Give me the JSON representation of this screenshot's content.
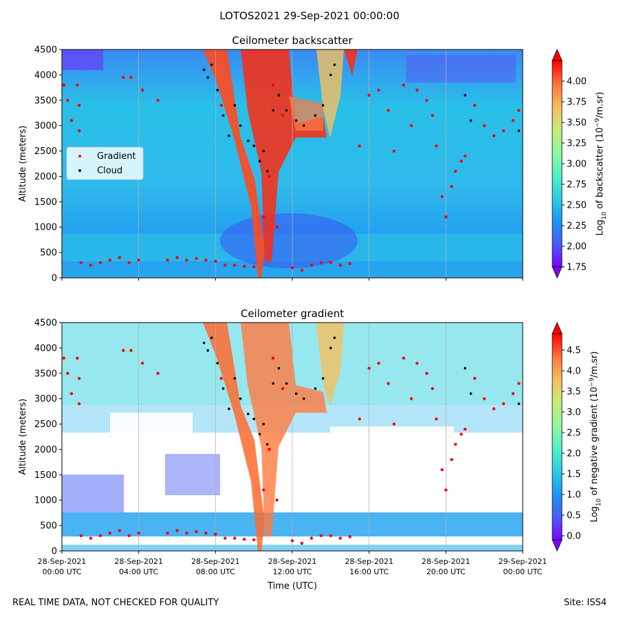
{
  "suptitle": "LOTOS2021 29-Sep-2021 00:00:00",
  "footer_left": "REAL TIME DATA, NOT CHECKED FOR QUALITY",
  "footer_right": "Site: ISS4",
  "xlabel": "Time (UTC)",
  "time_ticks": [
    {
      "hour": 0,
      "line1": "28-Sep-2021",
      "line2": "00:00 UTC"
    },
    {
      "hour": 4,
      "line1": "28-Sep-2021",
      "line2": "04:00 UTC"
    },
    {
      "hour": 8,
      "line1": "28-Sep-2021",
      "line2": "08:00 UTC"
    },
    {
      "hour": 12,
      "line1": "28-Sep-2021",
      "line2": "12:00 UTC"
    },
    {
      "hour": 16,
      "line1": "28-Sep-2021",
      "line2": "16:00 UTC"
    },
    {
      "hour": 20,
      "line1": "28-Sep-2021",
      "line2": "20:00 UTC"
    },
    {
      "hour": 24,
      "line1": "29-Sep-2021",
      "line2": "00:00 UTC"
    }
  ],
  "colors": {
    "gradient_marker": "#ff0000",
    "cloud_marker": "#000000",
    "legend_bg": "#d6f4fb",
    "colormap": [
      "#7f00ff",
      "#4a5cf8",
      "#1996f3",
      "#2acde4",
      "#4df2c8",
      "#8ef8a0",
      "#c5ec7c",
      "#f5c15f",
      "#ff7a3e",
      "#ff0000"
    ]
  },
  "chart_data": [
    {
      "type": "heatmap",
      "title": "Ceilometer backscatter",
      "ylabel": "Altitude (meters)",
      "xlim": [
        0,
        24
      ],
      "ylim": [
        0,
        4500
      ],
      "yticks": [
        0,
        500,
        1000,
        1500,
        2000,
        2500,
        3000,
        3500,
        4000,
        4500
      ],
      "colorbar": {
        "label_main": "Log",
        "label_sub": "10",
        "label_rest": " of backscatter (10",
        "label_exp": "−9",
        "label_end": "/m.sr)",
        "range": [
          1.75,
          4.25
        ],
        "ticks": [
          "1.75",
          "2.00",
          "2.25",
          "2.50",
          "2.75",
          "3.00",
          "3.25",
          "3.50",
          "3.75",
          "4.00"
        ]
      },
      "legend": [
        {
          "name": "Gradient",
          "color": "#ff0000"
        },
        {
          "name": "Cloud",
          "color": "#000000"
        }
      ],
      "gradient_points": [
        [
          0.1,
          3800
        ],
        [
          0.3,
          3500
        ],
        [
          0.5,
          3100
        ],
        [
          0.8,
          3800
        ],
        [
          0.9,
          3400
        ],
        [
          0.9,
          2900
        ],
        [
          1.0,
          300
        ],
        [
          1.5,
          250
        ],
        [
          2.0,
          300
        ],
        [
          2.5,
          350
        ],
        [
          3.0,
          400
        ],
        [
          3.5,
          300
        ],
        [
          4.0,
          350
        ],
        [
          3.2,
          3950
        ],
        [
          3.6,
          3950
        ],
        [
          4.2,
          3700
        ],
        [
          5.0,
          3500
        ],
        [
          5.5,
          350
        ],
        [
          6.0,
          400
        ],
        [
          6.5,
          350
        ],
        [
          7.0,
          380
        ],
        [
          7.5,
          350
        ],
        [
          8.0,
          330
        ],
        [
          8.3,
          3400
        ],
        [
          8.5,
          250
        ],
        [
          9.0,
          250
        ],
        [
          9.5,
          230
        ],
        [
          10.0,
          220
        ],
        [
          10.5,
          1200
        ],
        [
          10.8,
          2000
        ],
        [
          11.0,
          3800
        ],
        [
          11.2,
          1000
        ],
        [
          11.5,
          3200
        ],
        [
          12.0,
          200
        ],
        [
          12.5,
          150
        ],
        [
          13.0,
          250
        ],
        [
          13.5,
          300
        ],
        [
          14.0,
          300
        ],
        [
          14.5,
          250
        ],
        [
          15.0,
          280
        ],
        [
          15.5,
          2600
        ],
        [
          16.0,
          3600
        ],
        [
          16.5,
          3700
        ],
        [
          17.0,
          3300
        ],
        [
          17.3,
          2500
        ],
        [
          17.8,
          3800
        ],
        [
          18.2,
          3000
        ],
        [
          18.5,
          3700
        ],
        [
          19.0,
          3500
        ],
        [
          19.3,
          3200
        ],
        [
          19.5,
          2600
        ],
        [
          19.8,
          1600
        ],
        [
          20.0,
          1200
        ],
        [
          20.3,
          1800
        ],
        [
          20.5,
          2100
        ],
        [
          20.8,
          2300
        ],
        [
          21.0,
          2400
        ],
        [
          21.5,
          3400
        ],
        [
          22.0,
          3000
        ],
        [
          22.5,
          2800
        ],
        [
          23.0,
          2900
        ],
        [
          23.5,
          3100
        ],
        [
          23.8,
          3300
        ]
      ],
      "cloud_points": [
        [
          7.4,
          4100
        ],
        [
          7.6,
          3950
        ],
        [
          7.8,
          4200
        ],
        [
          8.1,
          3700
        ],
        [
          8.4,
          3200
        ],
        [
          8.7,
          2800
        ],
        [
          9.0,
          3400
        ],
        [
          9.3,
          3000
        ],
        [
          9.7,
          2700
        ],
        [
          10.0,
          2600
        ],
        [
          10.3,
          2300
        ],
        [
          10.5,
          2500
        ],
        [
          10.7,
          2100
        ],
        [
          11.0,
          3300
        ],
        [
          11.3,
          3600
        ],
        [
          11.7,
          3300
        ],
        [
          12.2,
          3100
        ],
        [
          12.6,
          3000
        ],
        [
          13.2,
          3200
        ],
        [
          13.6,
          3400
        ],
        [
          14.0,
          4000
        ],
        [
          14.2,
          4200
        ],
        [
          21.0,
          3600
        ],
        [
          21.3,
          3100
        ],
        [
          23.8,
          2900
        ]
      ]
    },
    {
      "type": "heatmap",
      "title": "Ceilometer gradient",
      "ylabel": "Altitude (meters)",
      "xlim": [
        0,
        24
      ],
      "ylim": [
        0,
        4500
      ],
      "yticks": [
        0,
        500,
        1000,
        1500,
        2000,
        2500,
        3000,
        3500,
        4000,
        4500
      ],
      "colorbar": {
        "label_main": "Log",
        "label_sub": "10",
        "label_rest": " of negative gradient (10",
        "label_exp": "−9",
        "label_end": "/m.sr)",
        "range": [
          -0.1,
          4.9
        ],
        "ticks": [
          "0.0",
          "0.5",
          "1.0",
          "1.5",
          "2.0",
          "2.5",
          "3.0",
          "3.5",
          "4.0",
          "4.5"
        ]
      },
      "gradient_points": [
        [
          0.1,
          3800
        ],
        [
          0.3,
          3500
        ],
        [
          0.5,
          3100
        ],
        [
          0.8,
          3800
        ],
        [
          0.9,
          3400
        ],
        [
          0.9,
          2900
        ],
        [
          1.0,
          300
        ],
        [
          1.5,
          250
        ],
        [
          2.0,
          300
        ],
        [
          2.5,
          350
        ],
        [
          3.0,
          400
        ],
        [
          3.5,
          300
        ],
        [
          4.0,
          350
        ],
        [
          3.2,
          3950
        ],
        [
          3.6,
          3950
        ],
        [
          4.2,
          3700
        ],
        [
          5.0,
          3500
        ],
        [
          5.5,
          350
        ],
        [
          6.0,
          400
        ],
        [
          6.5,
          350
        ],
        [
          7.0,
          380
        ],
        [
          7.5,
          350
        ],
        [
          8.0,
          330
        ],
        [
          8.3,
          3400
        ],
        [
          8.5,
          250
        ],
        [
          9.0,
          250
        ],
        [
          9.5,
          230
        ],
        [
          10.0,
          220
        ],
        [
          10.5,
          1200
        ],
        [
          10.8,
          2000
        ],
        [
          11.0,
          3800
        ],
        [
          11.2,
          1000
        ],
        [
          11.5,
          3200
        ],
        [
          12.0,
          200
        ],
        [
          12.5,
          150
        ],
        [
          13.0,
          250
        ],
        [
          13.5,
          300
        ],
        [
          14.0,
          300
        ],
        [
          14.5,
          250
        ],
        [
          15.0,
          280
        ],
        [
          15.5,
          2600
        ],
        [
          16.0,
          3600
        ],
        [
          16.5,
          3700
        ],
        [
          17.0,
          3300
        ],
        [
          17.3,
          2500
        ],
        [
          17.8,
          3800
        ],
        [
          18.2,
          3000
        ],
        [
          18.5,
          3700
        ],
        [
          19.0,
          3500
        ],
        [
          19.3,
          3200
        ],
        [
          19.5,
          2600
        ],
        [
          19.8,
          1600
        ],
        [
          20.0,
          1200
        ],
        [
          20.3,
          1800
        ],
        [
          20.5,
          2100
        ],
        [
          20.8,
          2300
        ],
        [
          21.0,
          2400
        ],
        [
          21.5,
          3400
        ],
        [
          22.0,
          3000
        ],
        [
          22.5,
          2800
        ],
        [
          23.0,
          2900
        ],
        [
          23.5,
          3100
        ],
        [
          23.8,
          3300
        ]
      ],
      "cloud_points": [
        [
          7.4,
          4100
        ],
        [
          7.6,
          3950
        ],
        [
          7.8,
          4200
        ],
        [
          8.1,
          3700
        ],
        [
          8.4,
          3200
        ],
        [
          8.7,
          2800
        ],
        [
          9.0,
          3400
        ],
        [
          9.3,
          3000
        ],
        [
          9.7,
          2700
        ],
        [
          10.0,
          2600
        ],
        [
          10.3,
          2300
        ],
        [
          10.5,
          2500
        ],
        [
          10.7,
          2100
        ],
        [
          11.0,
          3300
        ],
        [
          11.3,
          3600
        ],
        [
          11.7,
          3300
        ],
        [
          12.2,
          3100
        ],
        [
          12.6,
          3000
        ],
        [
          13.2,
          3200
        ],
        [
          13.6,
          3400
        ],
        [
          14.0,
          4000
        ],
        [
          14.2,
          4200
        ],
        [
          21.0,
          3600
        ],
        [
          21.3,
          3100
        ],
        [
          23.8,
          2900
        ]
      ]
    }
  ]
}
